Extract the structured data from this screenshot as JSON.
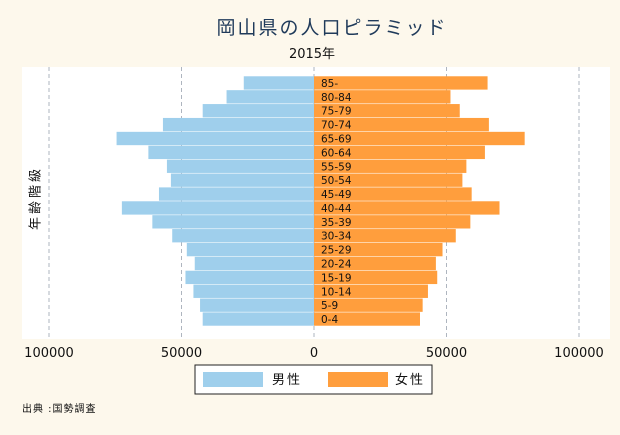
{
  "chart_data": {
    "type": "bar",
    "orientation": "horizontal",
    "title": "岡山県の人口ピラミッド",
    "subtitle": "2015年",
    "ylabel": "年齢階級",
    "categories": [
      "0-4",
      "5-9",
      "10-14",
      "15-19",
      "20-24",
      "25-29",
      "30-34",
      "35-39",
      "40-44",
      "45-49",
      "50-54",
      "55-59",
      "60-64",
      "65-69",
      "70-74",
      "75-79",
      "80-84",
      "85-"
    ],
    "series": [
      {
        "name": "男性",
        "color": "#9fcfec",
        "values": [
          42000,
          43000,
          45500,
          48500,
          45000,
          48000,
          53500,
          61000,
          72500,
          58500,
          54000,
          55500,
          62500,
          74500,
          57000,
          42000,
          33000,
          26500
        ]
      },
      {
        "name": "女性",
        "color": "#ff9e3d",
        "values": [
          40000,
          41000,
          43000,
          46500,
          46000,
          48500,
          53500,
          59000,
          70000,
          59500,
          56000,
          57500,
          64500,
          79500,
          66000,
          55000,
          51500,
          65500
        ]
      }
    ],
    "xticks": [
      "100000",
      "50000",
      "0",
      "50000",
      "100000"
    ],
    "xlim": [
      -100000,
      100000
    ],
    "grid": "vertical dashed",
    "legend": "bottom-center"
  },
  "source": "出典 :国勢調査"
}
